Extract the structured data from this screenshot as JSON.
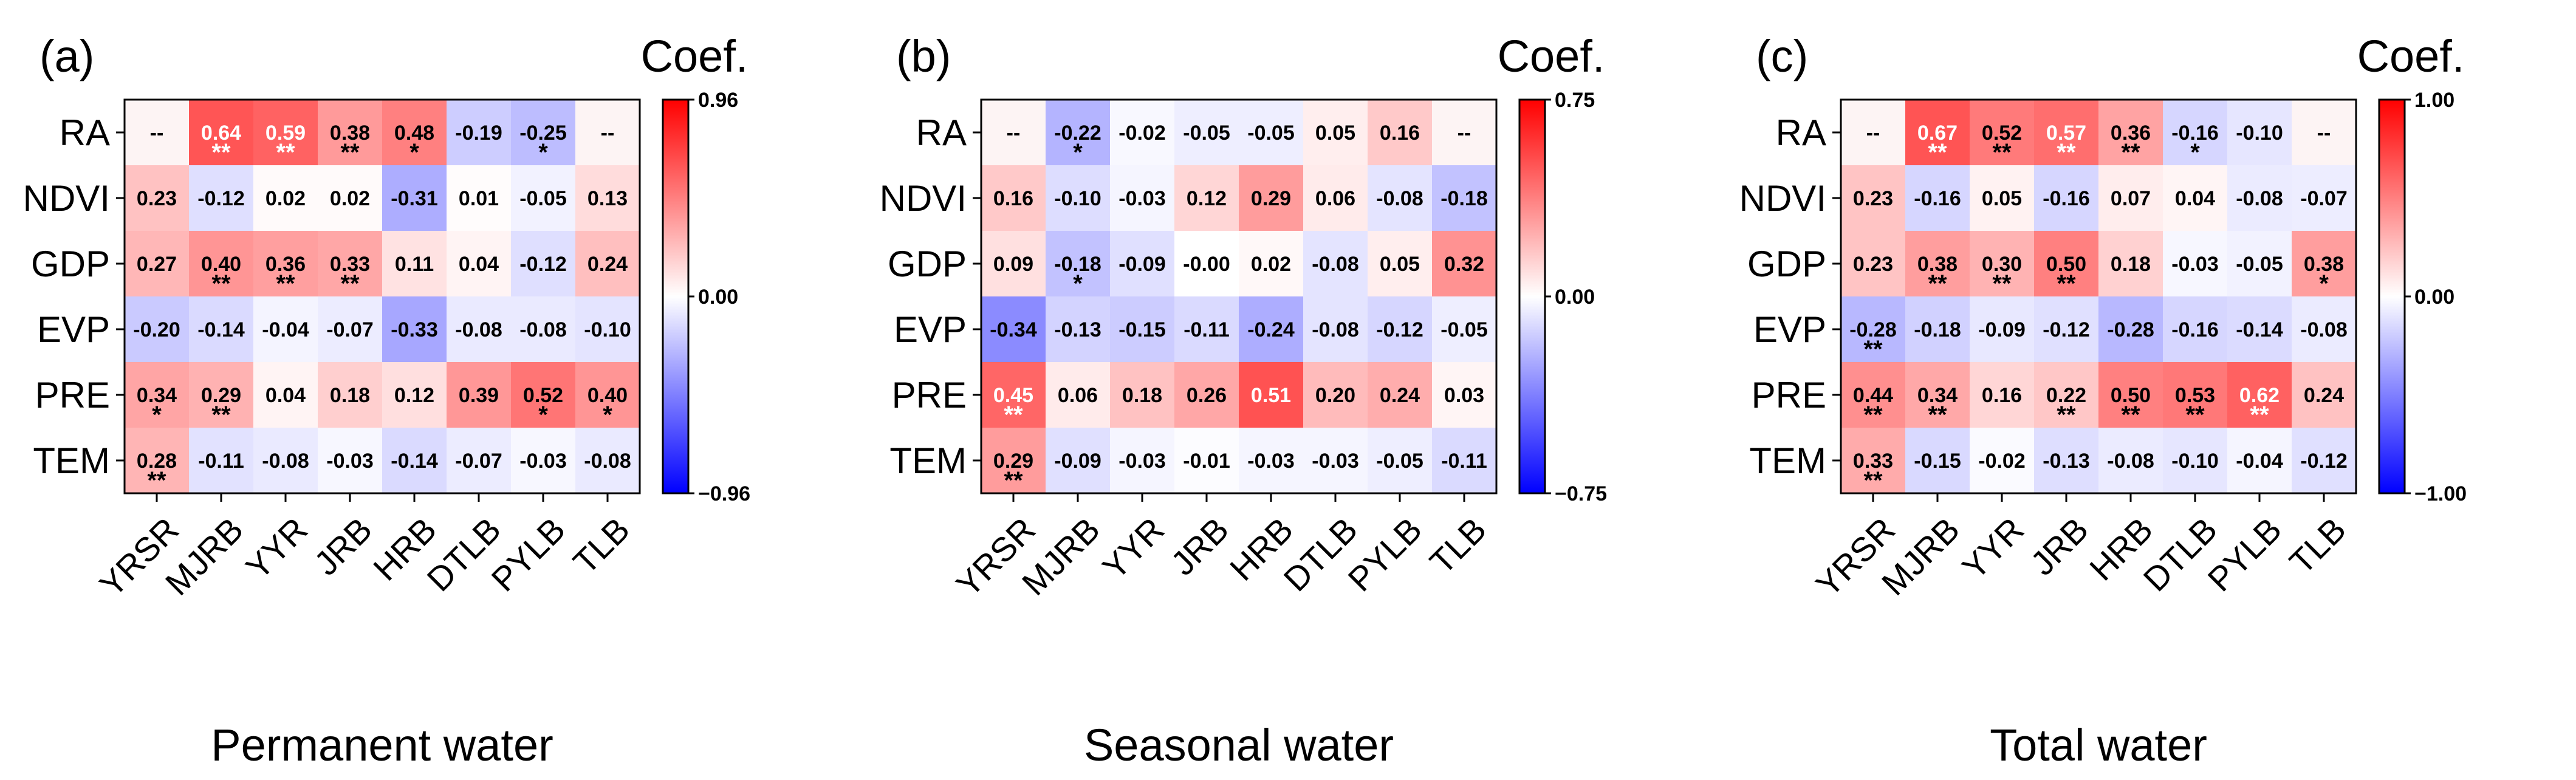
{
  "figure": {
    "rows": [
      "RA",
      "NDVI",
      "GDP",
      "EVP",
      "PRE",
      "TEM"
    ],
    "columns": [
      "YRSR",
      "MJRB",
      "YYR",
      "JRB",
      "HRB",
      "DTLB",
      "PYLB",
      "TLB"
    ],
    "colorbar_title": "Coef.",
    "colormap": {
      "low": "#0000ff",
      "mid": "#ffffff",
      "high": "#ff0000"
    }
  },
  "chart_data": [
    {
      "type": "heatmap",
      "panel": "(a)",
      "xlabel": "Permanent water",
      "colorbar_title": "Coef.",
      "vmin": -0.96,
      "vmax": 0.96,
      "colorbar_ticks": [
        "0.96",
        "0.00",
        "−0.96"
      ],
      "values": [
        [
          null,
          0.64,
          0.59,
          0.38,
          0.48,
          -0.19,
          -0.25,
          null
        ],
        [
          0.23,
          -0.12,
          0.02,
          0.02,
          -0.31,
          0.01,
          -0.05,
          0.13
        ],
        [
          0.27,
          0.4,
          0.36,
          0.33,
          0.11,
          0.04,
          -0.12,
          0.24
        ],
        [
          -0.2,
          -0.14,
          -0.04,
          -0.07,
          -0.33,
          -0.08,
          -0.08,
          -0.1
        ],
        [
          0.34,
          0.29,
          0.04,
          0.18,
          0.12,
          0.39,
          0.52,
          0.4
        ],
        [
          0.28,
          -0.11,
          -0.08,
          -0.03,
          -0.14,
          -0.07,
          -0.03,
          -0.08
        ]
      ],
      "labels": [
        [
          "--",
          "0.64",
          "0.59",
          "0.38",
          "0.48",
          "-0.19",
          "-0.25",
          "--"
        ],
        [
          "0.23",
          "-0.12",
          "0.02",
          "0.02",
          "-0.31",
          "0.01",
          "-0.05",
          "0.13"
        ],
        [
          "0.27",
          "0.40",
          "0.36",
          "0.33",
          "0.11",
          "0.04",
          "-0.12",
          "0.24"
        ],
        [
          "-0.20",
          "-0.14",
          "-0.04",
          "-0.07",
          "-0.33",
          "-0.08",
          "-0.08",
          "-0.10"
        ],
        [
          "0.34",
          "0.29",
          "0.04",
          "0.18",
          "0.12",
          "0.39",
          "0.52",
          "0.40"
        ],
        [
          "0.28",
          "-0.11",
          "-0.08",
          "-0.03",
          "-0.14",
          "-0.07",
          "-0.03",
          "-0.08"
        ]
      ],
      "significance": [
        [
          "",
          "**",
          "**",
          "**",
          "*",
          "",
          "*",
          ""
        ],
        [
          "",
          "",
          "",
          "",
          "",
          "",
          "",
          ""
        ],
        [
          "",
          "**",
          "**",
          "**",
          "",
          "",
          "",
          ""
        ],
        [
          "",
          "",
          "",
          "",
          "",
          "",
          "",
          ""
        ],
        [
          "*",
          "**",
          "",
          "",
          "",
          "",
          "*",
          "*"
        ],
        [
          "**",
          "",
          "",
          "",
          "",
          "",
          "",
          ""
        ]
      ]
    },
    {
      "type": "heatmap",
      "panel": "(b)",
      "xlabel": "Seasonal water",
      "colorbar_title": "Coef.",
      "vmin": -0.75,
      "vmax": 0.75,
      "colorbar_ticks": [
        "0.75",
        "0.00",
        "−0.75"
      ],
      "values": [
        [
          null,
          -0.22,
          -0.02,
          -0.05,
          -0.05,
          0.05,
          0.16,
          null
        ],
        [
          0.16,
          -0.1,
          -0.03,
          0.12,
          0.29,
          0.06,
          -0.08,
          -0.18
        ],
        [
          0.09,
          -0.18,
          -0.09,
          -0.0,
          0.02,
          -0.08,
          0.05,
          0.32
        ],
        [
          -0.34,
          -0.13,
          -0.15,
          -0.11,
          -0.24,
          -0.08,
          -0.12,
          -0.05
        ],
        [
          0.45,
          0.06,
          0.18,
          0.26,
          0.51,
          0.2,
          0.24,
          0.03
        ],
        [
          0.29,
          -0.09,
          -0.03,
          -0.01,
          -0.03,
          -0.03,
          -0.05,
          -0.11
        ]
      ],
      "labels": [
        [
          "--",
          "-0.22",
          "-0.02",
          "-0.05",
          "-0.05",
          "0.05",
          "0.16",
          "--"
        ],
        [
          "0.16",
          "-0.10",
          "-0.03",
          "0.12",
          "0.29",
          "0.06",
          "-0.08",
          "-0.18"
        ],
        [
          "0.09",
          "-0.18",
          "-0.09",
          "-0.00",
          "0.02",
          "-0.08",
          "0.05",
          "0.32"
        ],
        [
          "-0.34",
          "-0.13",
          "-0.15",
          "-0.11",
          "-0.24",
          "-0.08",
          "-0.12",
          "-0.05"
        ],
        [
          "0.45",
          "0.06",
          "0.18",
          "0.26",
          "0.51",
          "0.20",
          "0.24",
          "0.03"
        ],
        [
          "0.29",
          "-0.09",
          "-0.03",
          "-0.01",
          "-0.03",
          "-0.03",
          "-0.05",
          "-0.11"
        ]
      ],
      "significance": [
        [
          "",
          "*",
          "",
          "",
          "",
          "",
          "",
          ""
        ],
        [
          "",
          "",
          "",
          "",
          "",
          "",
          "",
          ""
        ],
        [
          "",
          "*",
          "",
          "",
          "",
          "",
          "",
          ""
        ],
        [
          "",
          "",
          "",
          "",
          "",
          "",
          "",
          ""
        ],
        [
          "**",
          "",
          "",
          "",
          "",
          "",
          "",
          ""
        ],
        [
          "**",
          "",
          "",
          "",
          "",
          "",
          "",
          ""
        ]
      ]
    },
    {
      "type": "heatmap",
      "panel": "(c)",
      "xlabel": "Total water",
      "colorbar_title": "Coef.",
      "vmin": -1.0,
      "vmax": 1.0,
      "colorbar_ticks": [
        "1.00",
        "0.00",
        "−1.00"
      ],
      "values": [
        [
          null,
          0.67,
          0.52,
          0.57,
          0.36,
          -0.16,
          -0.1,
          null
        ],
        [
          0.23,
          -0.16,
          0.05,
          -0.16,
          0.07,
          0.04,
          -0.08,
          -0.07
        ],
        [
          0.23,
          0.38,
          0.3,
          0.5,
          0.18,
          -0.03,
          -0.05,
          0.38
        ],
        [
          -0.28,
          -0.18,
          -0.09,
          -0.12,
          -0.28,
          -0.16,
          -0.14,
          -0.08
        ],
        [
          0.44,
          0.34,
          0.16,
          0.22,
          0.5,
          0.53,
          0.62,
          0.24
        ],
        [
          0.33,
          -0.15,
          -0.02,
          -0.13,
          -0.08,
          -0.1,
          -0.04,
          -0.12
        ]
      ],
      "labels": [
        [
          "--",
          "0.67",
          "0.52",
          "0.57",
          "0.36",
          "-0.16",
          "-0.10",
          "--"
        ],
        [
          "0.23",
          "-0.16",
          "0.05",
          "-0.16",
          "0.07",
          "0.04",
          "-0.08",
          "-0.07"
        ],
        [
          "0.23",
          "0.38",
          "0.30",
          "0.50",
          "0.18",
          "-0.03",
          "-0.05",
          "0.38"
        ],
        [
          "-0.28",
          "-0.18",
          "-0.09",
          "-0.12",
          "-0.28",
          "-0.16",
          "-0.14",
          "-0.08"
        ],
        [
          "0.44",
          "0.34",
          "0.16",
          "0.22",
          "0.50",
          "0.53",
          "0.62",
          "0.24"
        ],
        [
          "0.33",
          "-0.15",
          "-0.02",
          "-0.13",
          "-0.08",
          "-0.10",
          "-0.04",
          "-0.12"
        ]
      ],
      "significance": [
        [
          "",
          "**",
          "**",
          "**",
          "**",
          "*",
          "",
          ""
        ],
        [
          "",
          "",
          "",
          "",
          "",
          "",
          "",
          ""
        ],
        [
          "",
          "**",
          "**",
          "**",
          "",
          "",
          "",
          "*"
        ],
        [
          "**",
          "",
          "",
          "",
          "",
          "",
          "",
          ""
        ],
        [
          "**",
          "**",
          "",
          "**",
          "**",
          "**",
          "**",
          ""
        ],
        [
          "**",
          "",
          "",
          "",
          "",
          "",
          "",
          ""
        ]
      ]
    }
  ]
}
